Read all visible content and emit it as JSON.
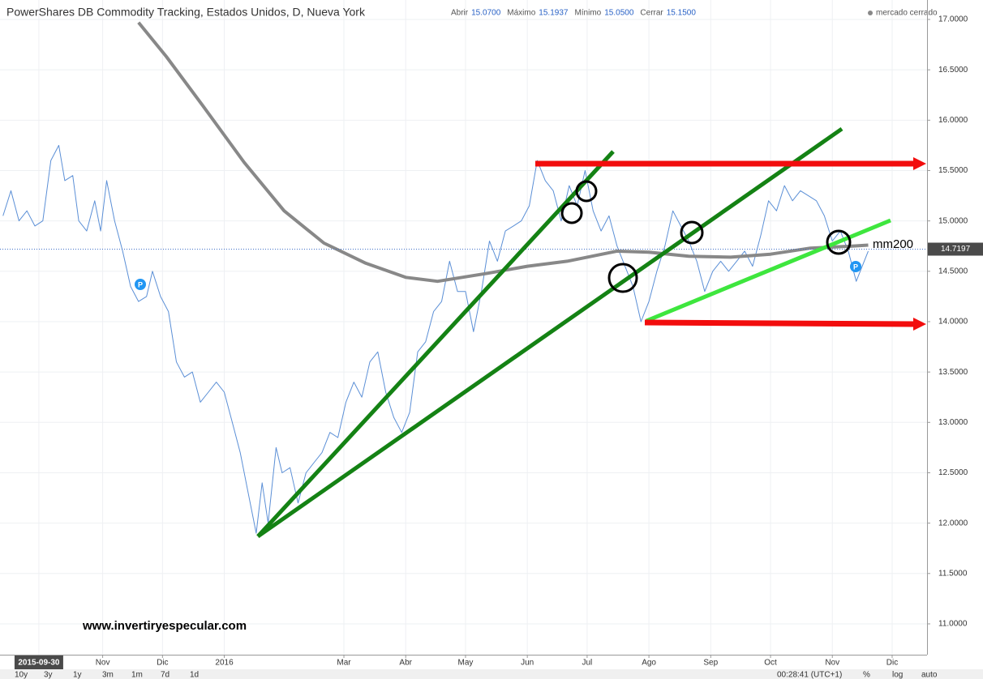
{
  "chart_data": {
    "type": "line",
    "title": "PowerShares DB Commodity Tracking, Estados Unidos, D, Nueva York",
    "ohlc": [
      {
        "name": "Abrir",
        "value": "15.0700"
      },
      {
        "name": "Máximo",
        "value": "15.1937"
      },
      {
        "name": "Mínimo",
        "value": "15.0500"
      },
      {
        "name": "Cerrar",
        "value": "15.1500"
      }
    ],
    "market_status": "mercado cerrado",
    "last_price": 14.7197,
    "ma_label": "mm200",
    "watermark": "www.invertiryespecular.com",
    "event_labels": [
      "P",
      "P"
    ],
    "range_buttons": [
      "10y",
      "3y",
      "1y",
      "3m",
      "1m",
      "7d",
      "1d"
    ],
    "clock": "00:28:41 (UTC+1)",
    "scale_buttons": [
      "%",
      "log",
      "auto"
    ],
    "xlim": [
      -19.5,
      445.5
    ],
    "ylim": [
      10.694,
      17.193
    ],
    "xticks": [
      {
        "value": 0,
        "label": "2015-09-30"
      },
      {
        "value": 32,
        "label": "Nov"
      },
      {
        "value": 62,
        "label": "Dic"
      },
      {
        "value": 93,
        "label": "2016"
      },
      {
        "value": 153,
        "label": "Mar"
      },
      {
        "value": 184,
        "label": "Abr"
      },
      {
        "value": 214,
        "label": "May"
      },
      {
        "value": 245,
        "label": "Jun"
      },
      {
        "value": 275,
        "label": "Jul"
      },
      {
        "value": 306,
        "label": "Ago"
      },
      {
        "value": 337,
        "label": "Sep"
      },
      {
        "value": 367,
        "label": "Oct"
      },
      {
        "value": 398,
        "label": "Nov"
      },
      {
        "value": 428,
        "label": "Dic"
      }
    ],
    "yticks": [
      {
        "value": 11,
        "label": "11.0000"
      },
      {
        "value": 11.5,
        "label": "11.5000"
      },
      {
        "value": 12,
        "label": "12.0000"
      },
      {
        "value": 12.5,
        "label": "12.5000"
      },
      {
        "value": 13,
        "label": "13.0000"
      },
      {
        "value": 13.5,
        "label": "13.5000"
      },
      {
        "value": 14,
        "label": "14.0000"
      },
      {
        "value": 14.5,
        "label": "14.5000"
      },
      {
        "value": 15,
        "label": "15.0000"
      },
      {
        "value": 15.5,
        "label": "15.5000"
      },
      {
        "value": 16,
        "label": "16.0000"
      },
      {
        "value": 16.5,
        "label": "16.5000"
      },
      {
        "value": 17,
        "label": "17.0000"
      }
    ],
    "grid": true,
    "series": [
      {
        "color": "#5b8fd6",
        "width": 1,
        "x": [
          -18,
          -14,
          -10,
          -6,
          -2,
          2,
          6,
          10,
          13,
          17,
          20,
          24,
          28,
          31,
          34,
          38,
          42,
          46,
          50,
          54,
          57,
          61,
          65,
          69,
          73,
          77,
          81,
          85,
          89,
          93,
          97,
          101,
          105,
          109,
          112,
          115,
          119,
          122,
          126,
          130,
          134,
          138,
          142,
          146,
          150,
          154,
          158,
          162,
          166,
          170,
          174,
          178,
          182,
          186,
          190,
          194,
          198,
          202,
          206,
          210,
          214,
          218,
          222,
          226,
          230,
          234,
          238,
          242,
          246,
          250,
          254,
          258,
          262,
          266,
          270,
          274,
          278,
          282,
          286,
          290,
          294,
          298,
          302,
          306,
          310,
          314,
          318,
          322,
          326,
          330,
          334,
          338,
          342,
          346,
          350,
          354,
          358,
          362,
          366,
          370,
          374,
          378,
          382,
          386,
          390,
          394,
          398,
          402,
          406,
          410,
          413,
          416
        ],
        "values": [
          15.05,
          15.3,
          15.0,
          15.1,
          14.95,
          15.0,
          15.6,
          15.75,
          15.4,
          15.45,
          15.0,
          14.9,
          15.2,
          14.9,
          15.4,
          15.0,
          14.7,
          14.35,
          14.2,
          14.25,
          14.5,
          14.25,
          14.1,
          13.6,
          13.45,
          13.5,
          13.2,
          13.3,
          13.4,
          13.3,
          13.0,
          12.7,
          12.3,
          11.9,
          12.4,
          12.0,
          12.75,
          12.5,
          12.55,
          12.2,
          12.5,
          12.6,
          12.7,
          12.9,
          12.85,
          13.2,
          13.4,
          13.25,
          13.6,
          13.7,
          13.3,
          13.05,
          12.9,
          13.1,
          13.7,
          13.8,
          14.1,
          14.2,
          14.6,
          14.3,
          14.3,
          13.9,
          14.3,
          14.8,
          14.6,
          14.9,
          14.95,
          15.0,
          15.15,
          15.6,
          15.4,
          15.3,
          15.0,
          15.35,
          15.15,
          15.5,
          15.1,
          14.9,
          15.05,
          14.75,
          14.55,
          14.35,
          14.0,
          14.2,
          14.5,
          14.75,
          15.1,
          14.95,
          14.8,
          14.6,
          14.3,
          14.5,
          14.6,
          14.5,
          14.6,
          14.7,
          14.55,
          14.85,
          15.2,
          15.1,
          15.35,
          15.2,
          15.3,
          15.25,
          15.2,
          15.05,
          14.8,
          14.9,
          14.7,
          14.4,
          14.55,
          14.7
        ]
      },
      {
        "color": "#888888",
        "width": 4,
        "x": [
          50,
          64,
          82,
          103,
          123,
          143,
          164,
          184,
          200,
          225,
          245,
          265,
          290,
          306,
          326,
          347,
          367,
          387,
          408,
          416
        ],
        "values": [
          16.97,
          16.63,
          16.15,
          15.58,
          15.1,
          14.78,
          14.58,
          14.44,
          14.4,
          14.48,
          14.55,
          14.6,
          14.7,
          14.69,
          14.65,
          14.64,
          14.67,
          14.73,
          14.75,
          14.76
        ]
      }
    ]
  }
}
